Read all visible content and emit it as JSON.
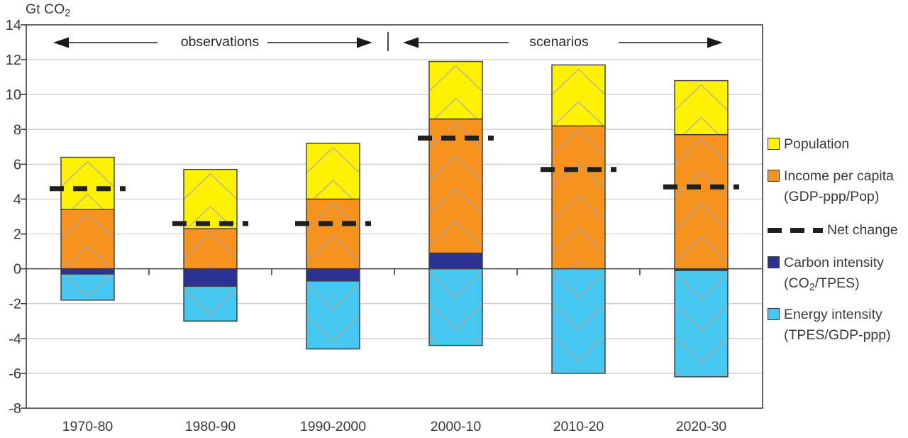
{
  "title": {
    "pre": "Gt CO",
    "sub": "2"
  },
  "header": {
    "observations": "observations",
    "scenarios": "scenarios"
  },
  "colors": {
    "population": "#FFF200",
    "income": "#F6921E",
    "carbon": "#2B3293",
    "energy": "#44C7F0",
    "net_change": "#1f1f1f",
    "bar_border": "#3a3a3a",
    "gridline": "#c9c9c9",
    "axis": "#3f3f3f",
    "chevron_on_warm": "#96A1C6",
    "chevron_on_cool": "#DB9B7E"
  },
  "legend": {
    "population": {
      "label": "Population"
    },
    "income": {
      "label": "Income per capita",
      "sublabel": "(GDP-ppp/Pop)"
    },
    "net_change": {
      "label": "Net change"
    },
    "carbon": {
      "label": "Carbon intensity",
      "sub_pre": "(CO",
      "sub_sub": "2",
      "sub_post": "/TPES)"
    },
    "energy": {
      "label": "Energy intensity",
      "sublabel": "(TPES/GDP-ppp)"
    }
  },
  "chart_data": {
    "type": "bar",
    "stacked": true,
    "title": "Gt CO2",
    "ylabel": "Gt CO2",
    "xlabel": "",
    "categories": [
      "1970-80",
      "1980-90",
      "1990-2000",
      "2000-10",
      "2010-20",
      "2020-30"
    ],
    "series": [
      {
        "name": "Population",
        "key": "population",
        "values": [
          3.0,
          3.4,
          3.2,
          3.3,
          3.5,
          3.1
        ]
      },
      {
        "name": "Income per capita (GDP-ppp/Pop)",
        "key": "income",
        "values": [
          3.4,
          2.3,
          4.0,
          7.7,
          8.2,
          7.7
        ]
      },
      {
        "name": "Carbon intensity (CO2/TPES)",
        "key": "carbon",
        "values": [
          -0.3,
          -1.0,
          -0.7,
          0.9,
          0.0,
          -0.1
        ]
      },
      {
        "name": "Energy intensity (TPES/GDP-ppp)",
        "key": "energy",
        "values": [
          -1.5,
          -2.0,
          -3.9,
          -4.4,
          -6.0,
          -6.1
        ]
      }
    ],
    "net_change": {
      "name": "Net change",
      "values": [
        4.6,
        2.6,
        2.6,
        7.5,
        5.7,
        4.7
      ]
    },
    "yticks": [
      14,
      12,
      10,
      8,
      6,
      4,
      2,
      0,
      -2,
      -4,
      -6,
      -8
    ],
    "ylim": [
      -8,
      14
    ],
    "grid": true,
    "legend_position": "right",
    "annotations": {
      "left_span_label": "observations",
      "right_span_label": "scenarios",
      "span_divider_after_category": "1990-2000"
    }
  }
}
